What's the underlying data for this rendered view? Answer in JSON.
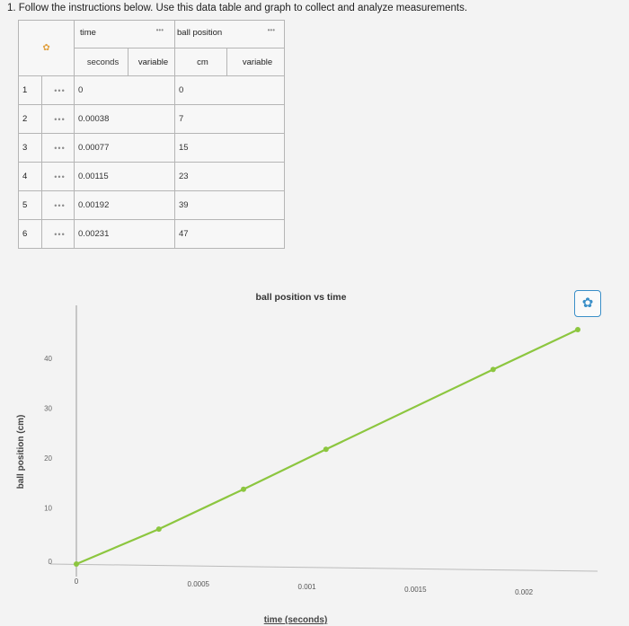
{
  "instruction": "1. Follow the instructions below. Use this data table and graph to collect and analyze measurements.",
  "table": {
    "settings_icon": "gear-icon",
    "column_names": [
      "time",
      "ball position"
    ],
    "menu_marker": "•••",
    "units": [
      "seconds",
      "cm"
    ],
    "variable_labels": [
      "variable",
      "variable"
    ],
    "rows": [
      {
        "n": "1",
        "time": "0",
        "pos": "0"
      },
      {
        "n": "2",
        "time": "0.00038",
        "pos": "7"
      },
      {
        "n": "3",
        "time": "0.00077",
        "pos": "15"
      },
      {
        "n": "4",
        "time": "0.00115",
        "pos": "23"
      },
      {
        "n": "5",
        "time": "0.00192",
        "pos": "39"
      },
      {
        "n": "6",
        "time": "0.00231",
        "pos": "47"
      }
    ]
  },
  "chart_data": {
    "type": "line",
    "title": "ball position vs time",
    "xlabel": "time (seconds)",
    "ylabel": "ball position (cm)",
    "x": [
      0,
      0.00038,
      0.00077,
      0.00115,
      0.00192,
      0.00231
    ],
    "series": [
      {
        "values": [
          0,
          7,
          15,
          23,
          39,
          47
        ],
        "color": "#8cc63f"
      }
    ],
    "xticks": [
      "0",
      "0.0005",
      "0.001",
      "0.0015",
      "0.002"
    ],
    "yticks": [
      "0",
      "10",
      "20",
      "30",
      "40"
    ],
    "xlim": [
      0,
      0.00231
    ],
    "ylim": [
      0,
      47
    ]
  },
  "chart_settings_icon": "gear-icon"
}
